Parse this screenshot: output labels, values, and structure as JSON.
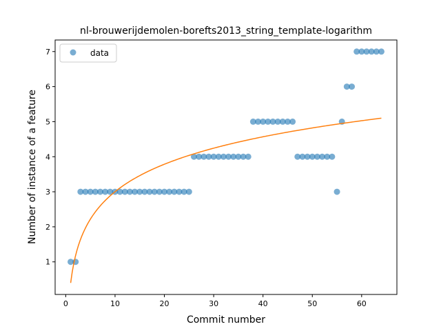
{
  "chart_data": {
    "type": "scatter",
    "title": "nl-brouwerijdemolen-borefts2013_string_template-logarithm",
    "xlabel": "Commit number",
    "ylabel": "Number of instance of a feature",
    "xlim": [
      -2.15,
      67.15
    ],
    "ylim": [
      0.07,
      7.33
    ],
    "xticks": [
      0,
      10,
      20,
      30,
      40,
      50,
      60
    ],
    "yticks": [
      1,
      2,
      3,
      4,
      5,
      6,
      7
    ],
    "grid": false,
    "legend": {
      "position": "upper-left",
      "entries": [
        "data"
      ]
    },
    "colors": {
      "data": "#1f77b4",
      "fit": "#ff7f0e"
    },
    "series": [
      {
        "name": "data",
        "kind": "scatter",
        "points": [
          [
            1,
            1
          ],
          [
            2,
            1
          ],
          [
            3,
            3
          ],
          [
            4,
            3
          ],
          [
            5,
            3
          ],
          [
            6,
            3
          ],
          [
            7,
            3
          ],
          [
            8,
            3
          ],
          [
            9,
            3
          ],
          [
            10,
            3
          ],
          [
            11,
            3
          ],
          [
            12,
            3
          ],
          [
            13,
            3
          ],
          [
            14,
            3
          ],
          [
            15,
            3
          ],
          [
            16,
            3
          ],
          [
            17,
            3
          ],
          [
            18,
            3
          ],
          [
            19,
            3
          ],
          [
            20,
            3
          ],
          [
            21,
            3
          ],
          [
            22,
            3
          ],
          [
            23,
            3
          ],
          [
            24,
            3
          ],
          [
            25,
            3
          ],
          [
            26,
            4
          ],
          [
            27,
            4
          ],
          [
            28,
            4
          ],
          [
            29,
            4
          ],
          [
            30,
            4
          ],
          [
            31,
            4
          ],
          [
            32,
            4
          ],
          [
            33,
            4
          ],
          [
            34,
            4
          ],
          [
            35,
            4
          ],
          [
            36,
            4
          ],
          [
            37,
            4
          ],
          [
            38,
            5
          ],
          [
            39,
            5
          ],
          [
            40,
            5
          ],
          [
            41,
            5
          ],
          [
            42,
            5
          ],
          [
            43,
            5
          ],
          [
            44,
            5
          ],
          [
            45,
            5
          ],
          [
            46,
            5
          ],
          [
            47,
            4
          ],
          [
            48,
            4
          ],
          [
            49,
            4
          ],
          [
            50,
            4
          ],
          [
            51,
            4
          ],
          [
            52,
            4
          ],
          [
            53,
            4
          ],
          [
            54,
            4
          ],
          [
            55,
            3
          ],
          [
            56,
            5
          ],
          [
            57,
            6
          ],
          [
            58,
            6
          ],
          [
            59,
            7
          ],
          [
            60,
            7
          ],
          [
            61,
            7
          ],
          [
            62,
            7
          ],
          [
            63,
            7
          ],
          [
            64,
            7
          ]
        ]
      },
      {
        "kind": "line",
        "function": {
          "form": "a*ln(x)+b",
          "a": 1.13,
          "b": 0.4
        },
        "x_range": [
          1,
          64
        ]
      }
    ]
  }
}
